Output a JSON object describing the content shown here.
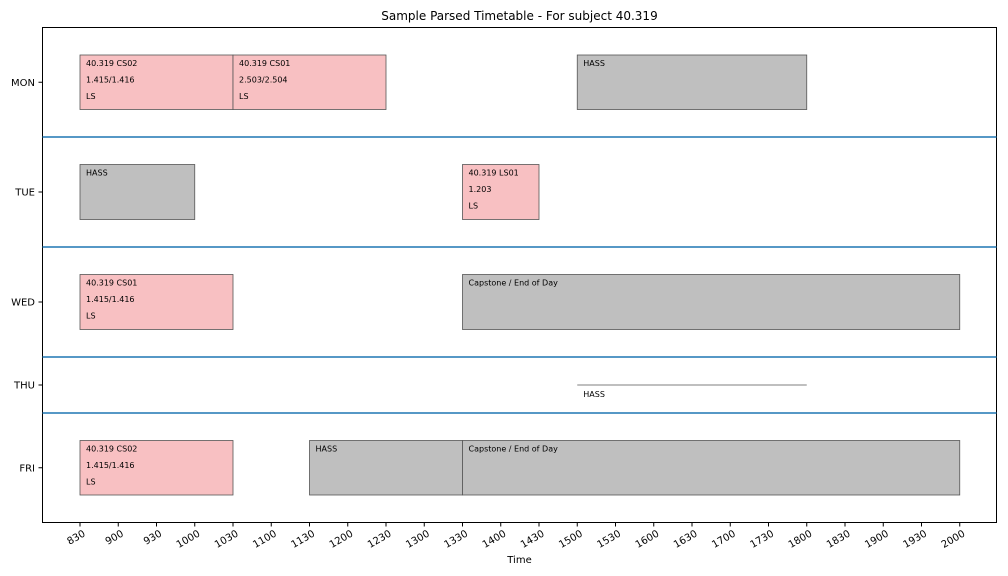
{
  "chart_data": {
    "type": "timeline",
    "title": "Sample Parsed Timetable - For subject 40.319",
    "xlabel": "Time",
    "ylabel": "",
    "xlim": [
      805,
      2050
    ],
    "x_ticks": [
      "830",
      "900",
      "930",
      "1000",
      "1030",
      "1100",
      "1130",
      "1200",
      "1230",
      "1300",
      "1330",
      "1400",
      "1430",
      "1500",
      "1530",
      "1600",
      "1630",
      "1700",
      "1730",
      "1800",
      "1830",
      "1900",
      "1930",
      "2000"
    ],
    "days": [
      "MON",
      "TUE",
      "WED",
      "THU",
      "FRI"
    ],
    "separator_color": "#1f77b4",
    "category_colors": {
      "LS": "#f8c0c2",
      "HASS": "#bfbfbf",
      "Capstone": "#bfbfbf"
    },
    "events": [
      {
        "day": "MON",
        "start": "0830",
        "end": "1030",
        "kind": "LS",
        "lines": [
          "40.319 CS02",
          "1.415/1.416",
          "LS"
        ]
      },
      {
        "day": "MON",
        "start": "1030",
        "end": "1230",
        "kind": "LS",
        "lines": [
          "40.319 CS01",
          "2.503/2.504",
          "LS"
        ]
      },
      {
        "day": "MON",
        "start": "1500",
        "end": "1800",
        "kind": "HASS",
        "lines": [
          "HASS"
        ]
      },
      {
        "day": "TUE",
        "start": "0830",
        "end": "1000",
        "kind": "HASS",
        "lines": [
          "HASS"
        ]
      },
      {
        "day": "TUE",
        "start": "1330",
        "end": "1430",
        "kind": "LS",
        "lines": [
          "40.319 LS01",
          "1.203",
          "LS"
        ]
      },
      {
        "day": "WED",
        "start": "0830",
        "end": "1030",
        "kind": "LS",
        "lines": [
          "40.319 CS01",
          "1.415/1.416",
          "LS"
        ]
      },
      {
        "day": "WED",
        "start": "1330",
        "end": "2000",
        "kind": "Capstone",
        "lines": [
          "Capstone / End of Day"
        ]
      },
      {
        "day": "THU",
        "start": "1500",
        "end": "1800",
        "kind": "HASS",
        "collapsed": true,
        "lines": [
          "HASS"
        ]
      },
      {
        "day": "FRI",
        "start": "0830",
        "end": "1030",
        "kind": "LS",
        "lines": [
          "40.319 CS02",
          "1.415/1.416",
          "LS"
        ]
      },
      {
        "day": "FRI",
        "start": "1130",
        "end": "1330",
        "kind": "HASS",
        "lines": [
          "HASS"
        ]
      },
      {
        "day": "FRI",
        "start": "1330",
        "end": "2000",
        "kind": "Capstone",
        "lines": [
          "Capstone / End of Day"
        ]
      }
    ]
  }
}
